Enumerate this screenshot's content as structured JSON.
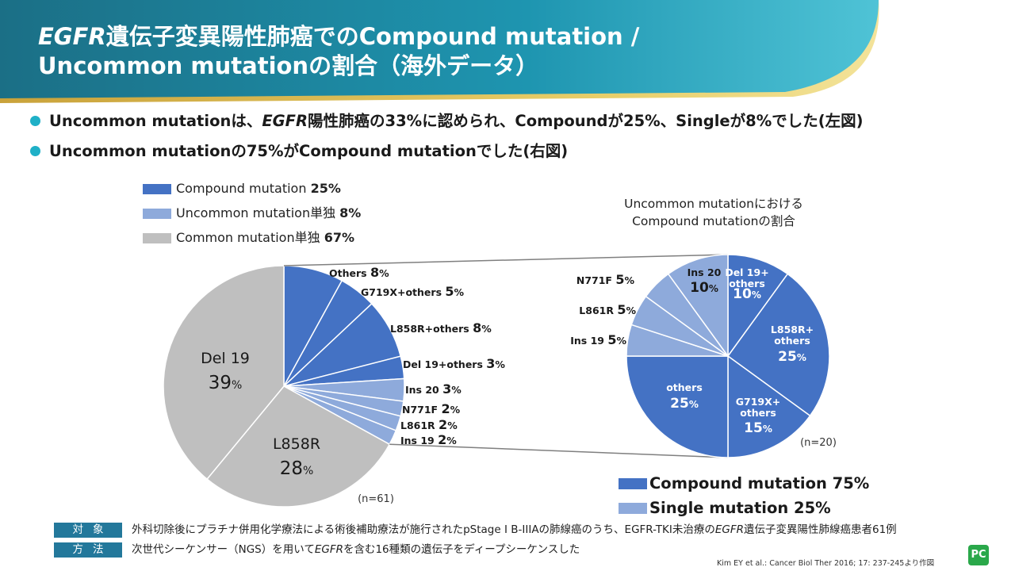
{
  "title": {
    "line1_italic": "EGFR",
    "line1_rest": "遺伝子変異陽性肺癌でのCompound mutation /",
    "line2": "Uncommon mutationの割合（海外データ）"
  },
  "bullets": [
    {
      "pre": "Uncommon mutationは、",
      "italic": "EGFR",
      "post": "陽性肺癌の33%に認められ、Compoundが25%、Singleが8%でした(左図)"
    },
    {
      "pre": "Uncommon mutationの75%がCompound mutationでした(右図)",
      "italic": "",
      "post": ""
    }
  ],
  "legend_left": [
    {
      "label": "Compound mutation ",
      "value": "25%",
      "color": "#4472c4"
    },
    {
      "label": "Uncommon mutation単独 ",
      "value": "8%",
      "color": "#8eaadb"
    },
    {
      "label": "Common mutation単独 ",
      "value": "67%",
      "color": "#bfbfbf"
    }
  ],
  "right_title": [
    "Uncommon mutationにおける",
    "Compound mutationの割合"
  ],
  "legend_right": [
    {
      "label": "Compound mutation 75%",
      "color": "#4472c4"
    },
    {
      "label": "Single mutation 25%",
      "color": "#8eaadb"
    }
  ],
  "chart_data": [
    {
      "type": "pie",
      "n_label": "(n=61)",
      "slices": [
        {
          "label": "Others",
          "value": 8,
          "group": "compound"
        },
        {
          "label": "G719X+others",
          "value": 5,
          "group": "compound"
        },
        {
          "label": "L858R+others",
          "value": 8,
          "group": "compound"
        },
        {
          "label": "Del 19+others",
          "value": 3,
          "group": "compound"
        },
        {
          "label": "Ins 20",
          "value": 3,
          "group": "single"
        },
        {
          "label": "N771F",
          "value": 2,
          "group": "single"
        },
        {
          "label": "L861R",
          "value": 2,
          "group": "single"
        },
        {
          "label": "Ins 19",
          "value": 2,
          "group": "single"
        },
        {
          "label": "L858R",
          "value": 28,
          "group": "common"
        },
        {
          "label": "Del 19",
          "value": 39,
          "group": "common"
        }
      ]
    },
    {
      "type": "pie",
      "n_label": "(n=20)",
      "slices": [
        {
          "label": "Del 19+\nothers",
          "value": 10,
          "group": "compound"
        },
        {
          "label": "L858R+\nothers",
          "value": 25,
          "group": "compound"
        },
        {
          "label": "G719X+\nothers",
          "value": 15,
          "group": "compound"
        },
        {
          "label": "others",
          "value": 25,
          "group": "compound"
        },
        {
          "label": "Ins 19",
          "value": 5,
          "group": "single"
        },
        {
          "label": "L861R",
          "value": 5,
          "group": "single"
        },
        {
          "label": "N771F",
          "value": 5,
          "group": "single"
        },
        {
          "label": "Ins 20",
          "value": 10,
          "group": "single"
        }
      ]
    }
  ],
  "colors": {
    "compound": "#4472c4",
    "single": "#8eaadb",
    "common": "#bfbfbf",
    "accent": "#1fb0c7",
    "tag": "#23789b"
  },
  "notes": [
    {
      "tag": "対象",
      "pre": "外科切除後にプラチナ併用化学療法による術後補助療法が施行されたpStage I B-IIIAの肺線癌のうち、EGFR-TKI未治療の",
      "italic": "EGFR",
      "post": "遺伝子変異陽性肺線癌患者61例"
    },
    {
      "tag": "方法",
      "pre": "次世代シーケンサー（NGS）を用いて",
      "italic": "EGFR",
      "post": "を含む16種類の遺伝子をディープシーケンスした"
    }
  ],
  "citation": "Kim EY et al.: Cancer Biol Ther 2016; 17: 237-245より作図",
  "logo": "PC"
}
